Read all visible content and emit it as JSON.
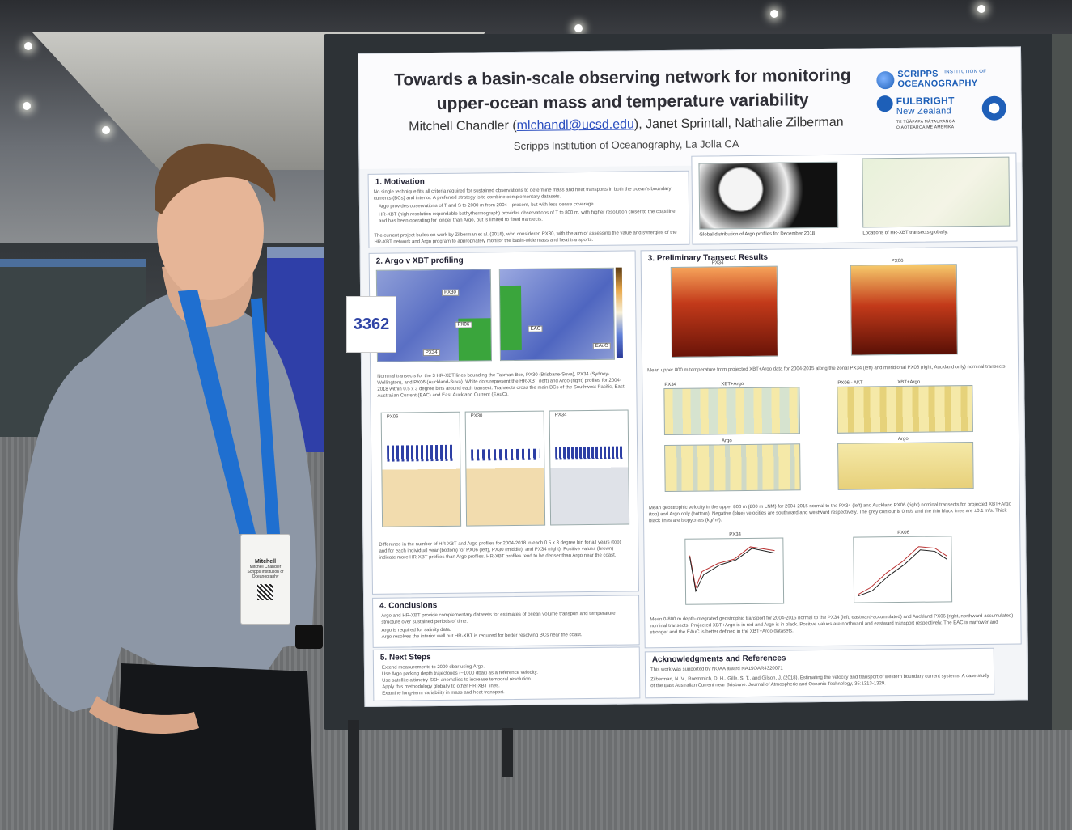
{
  "poster": {
    "title_line1": "Towards a basin-scale observing network for monitoring",
    "title_line2": "upper-ocean mass and temperature variability",
    "author_main": "Mitchell Chandler (",
    "author_email": "mlchandl@ucsd.edu",
    "authors_rest": "), Janet Sprintall, Nathalie Zilberman",
    "affiliation": "Scripps Institution of Oceanography, La Jolla CA",
    "logos": {
      "scripps_line1": "SCRIPPS",
      "scripps_sub": "INSTITUTION OF",
      "scripps_line2": "OCEANOGRAPHY",
      "fulbright_line1": "FULBRIGHT",
      "fulbright_line2": "New Zealand",
      "fulbright_sub1": "TE TŪĀPAPA MĀTAURANGA",
      "fulbright_sub2": "O AOTEAROA ME AMERIKA"
    },
    "board_number": "3362",
    "sections": {
      "motivation": {
        "heading": "1. Motivation",
        "text": "No single technique fits all criteria required for sustained observations to determine mass and heat transports in both the ocean's boundary currents (BCs) and interior. A preferred strategy is to combine complementary datasets.",
        "bullets": [
          "Argo provides observations of T and S to 2000 m from 2004—present, but with less dense coverage",
          "HR-XBT (high resolution expendable bathythermograph) provides observations of T to 800 m, with higher resolution closer to the coastline and has been operating for longer than Argo, but is limited to fixed transects."
        ],
        "text2": "The current project builds on work by Zilberman et al. (2018), who considered PX30, with the aim of assessing the value and synergies of the HR-XBT network and Argo program to appropriately monitor the basin-wide mass and heat transports.",
        "cap_argo": "Global distribution of Argo profiles for December 2018",
        "cap_xbt": "Locations of HR-XBT transects globally."
      },
      "argo_xbt": {
        "heading": "2. Argo v XBT profiling",
        "map_labels": [
          "PX30",
          "PX06",
          "PX34",
          "EAC",
          "EAuC"
        ],
        "text": "Nominal transects for the 3 HR-XBT lines bounding the Tasman Box, PX30 (Brisbane-Suva), PX34 (Sydney-Wellington), and PX06 (Auckland-Suva). White dots represent the HR-XBT (left) and Argo (right) profiles for 2004-2018 within 0.5 x 3 degree bins around each transect. Transects cross the main BCs of the Southwest Pacific, East Australian Current (EAC) and East Auckland Current (EAuC).",
        "hist_labels": [
          "PX06",
          "PX30",
          "PX34"
        ],
        "text2": "Difference in the number of HR-XBT and Argo profiles for 2004-2018 in each 0.5 x 3 degree bin for all years (top) and for each individual year (bottom) for PX06 (left), PX30 (middle), and PX34 (right). Positive values (brown) indicate more HR-XBT profiles than Argo profiles. HR-XBT profiles tend to be denser than Argo near the coast."
      },
      "results": {
        "heading": "3. Preliminary Transect Results",
        "temp_titles": [
          "PX34",
          "PX06"
        ],
        "temp_caption": "Mean upper 800 m temperature from projected XBT+Argo data for 2004-2015 along the zonal PX34 (left) and meridional PX06 (right, Auckland only) nominal transects.",
        "vel_labels": [
          "PX34",
          "XBT+Argo",
          "PX06 - AKT",
          "XBT+Argo",
          "Argo",
          "Argo"
        ],
        "vel_caption": "Mean geostrophic velocity in the upper 800 m (800 m LNM) for 2004-2015 normal to the PX34 (left) and Auckland PX06 (right) nominal transects for projected XBT+Argo (top) and Argo only (bottom). Negative (blue) velocities are southward and westward respectively. The grey contour is 0 m/s and the thin black lines are ±0.1 m/s. Thick black lines are isopycnals (kg/m³).",
        "transport_titles": [
          "PX34",
          "PX06"
        ],
        "transport_caption": "Mean 0-800 m depth-integrated geostrophic transport for 2004-2015 normal to the PX34 (left, eastward-accumulated) and Auckland PX06 (right, northward-accumulated) nominal transects. Projected XBT+Argo is in red and Argo is in black. Positive values are northward and eastward transport respectively. The EAC is narrower and stronger and the EAuC is better defined in the XBT+Argo datasets."
      },
      "conclusions": {
        "heading": "4. Conclusions",
        "bullets": [
          "Argo and HR-XBT provide complementary datasets for estimates of ocean volume transport and temperature structure over sustained periods of time.",
          "Argo is required for salinity data.",
          "Argo resolves the interior well but HR-XBT is required for better resolving BCs near the coast."
        ]
      },
      "next_steps": {
        "heading": "5. Next Steps",
        "bullets": [
          "Extend measurements to 2000 dbar using Argo.",
          "Use Argo parking depth trajectories (~1000 dbar) as a reference velocity.",
          "Use satellite altimetry SSH anomalies to increase temporal resolution.",
          "Apply this methodology globally to other HR-XBT lines.",
          "Examine long-term variability in mass and heat transport."
        ]
      },
      "acknowledgments": {
        "heading": "Acknowledgments and References",
        "text": "This work was supported by NOAA award NA15OAR4320071",
        "ref": "Zilberman, N. V., Roemmich, D. H., Gille, S. T., and Gilson, J. (2018). Estimating the velocity and transport of western boundary current systems: A case study of the East Australian Current near Brisbane. Journal of Atmospheric and Oceanic Technology, 35:1313-1329."
      }
    }
  },
  "badge": {
    "name": "Mitchell",
    "full_name": "Mitchell Chandler",
    "org": "Scripps Institution of Oceanography"
  },
  "colors": {
    "accent_blue": "#2c4fc0",
    "lanyard": "#1f6fd0",
    "shirt": "#8d97a6",
    "board": "#2d3236",
    "booth_blue": "#2f3fa8"
  }
}
